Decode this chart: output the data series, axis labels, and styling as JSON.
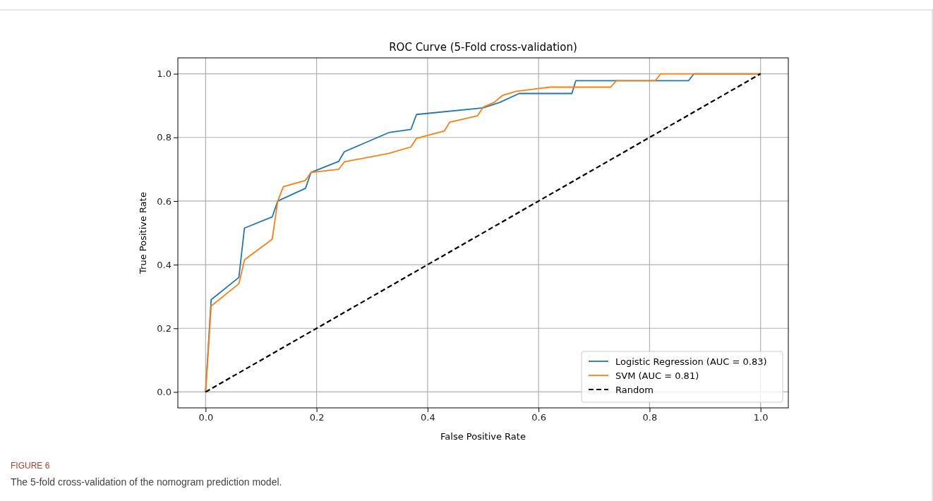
{
  "chart_data": {
    "type": "line",
    "title": "ROC Curve (5-Fold cross-validation)",
    "xlabel": "False Positive Rate",
    "ylabel": "True Positive Rate",
    "xlim": [
      -0.05,
      1.05
    ],
    "ylim": [
      -0.05,
      1.05
    ],
    "xticks": [
      {
        "value": 0,
        "label": "0.0"
      },
      {
        "value": 0.2,
        "label": "0.2"
      },
      {
        "value": 0.4,
        "label": "0.4"
      },
      {
        "value": 0.6,
        "label": "0.6"
      },
      {
        "value": 0.8,
        "label": "0.8"
      },
      {
        "value": 1,
        "label": "1.0"
      }
    ],
    "yticks": [
      {
        "value": 0,
        "label": "0.0"
      },
      {
        "value": 0.2,
        "label": "0.2"
      },
      {
        "value": 0.4,
        "label": "0.4"
      },
      {
        "value": 0.6,
        "label": "0.6"
      },
      {
        "value": 0.8,
        "label": "0.8"
      },
      {
        "value": 1,
        "label": "1.0"
      }
    ],
    "grid": true,
    "legend": "bottom right",
    "series": [
      {
        "name": "Logistic Regression (AUC = 0.83)",
        "color": "#1f77b4",
        "line_style": "solid",
        "x": [
          0,
          0.01,
          0.06,
          0.07,
          0.12,
          0.13,
          0.18,
          0.19,
          0.24,
          0.25,
          0.31,
          0.33,
          0.37,
          0.38,
          0.5,
          0.53,
          0.565,
          0.66,
          0.667,
          0.87,
          0.88,
          1
        ],
        "values": [
          0,
          0.29,
          0.36,
          0.515,
          0.55,
          0.6,
          0.64,
          0.69,
          0.725,
          0.755,
          0.8,
          0.815,
          0.825,
          0.872,
          0.893,
          0.91,
          0.938,
          0.938,
          0.978,
          0.978,
          1,
          1
        ]
      },
      {
        "name": "SVM (AUC = 0.81)",
        "color": "#ff7f0e",
        "line_style": "solid",
        "x": [
          0,
          0.01,
          0.06,
          0.07,
          0.12,
          0.13,
          0.14,
          0.18,
          0.19,
          0.24,
          0.25,
          0.33,
          0.37,
          0.38,
          0.43,
          0.44,
          0.49,
          0.5,
          0.52,
          0.535,
          0.56,
          0.62,
          0.73,
          0.74,
          0.81,
          0.82,
          1
        ],
        "values": [
          0,
          0.27,
          0.34,
          0.415,
          0.48,
          0.6,
          0.645,
          0.665,
          0.69,
          0.7,
          0.723,
          0.75,
          0.77,
          0.797,
          0.82,
          0.848,
          0.868,
          0.895,
          0.91,
          0.932,
          0.945,
          0.958,
          0.958,
          0.978,
          0.978,
          1,
          1
        ]
      },
      {
        "name": "Random",
        "color": "#000000",
        "line_style": "dashed",
        "x": [
          0,
          1
        ],
        "values": [
          0,
          1
        ]
      }
    ],
    "annotations": [
      "FIGURE 6",
      "The 5-fold cross-validation of the nomogram prediction model."
    ]
  }
}
